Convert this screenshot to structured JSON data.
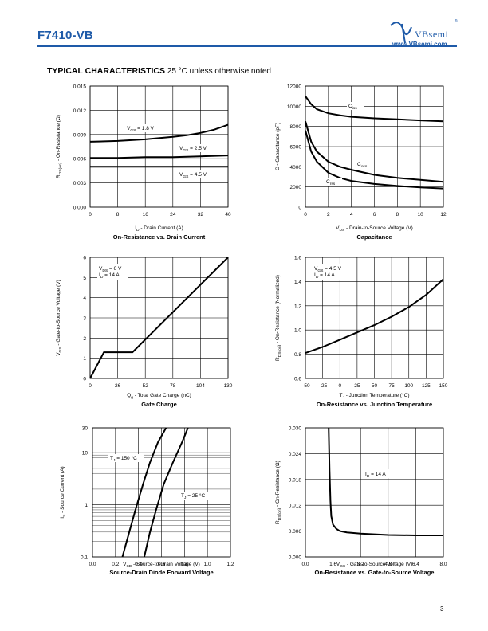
{
  "header": {
    "part_number": "F7410-VB",
    "brand": "VBsemi",
    "url": "www.VBsemi.com",
    "brand_color": "#1e5aa8"
  },
  "section": {
    "title": "TYPICAL CHARACTERISTICS",
    "note": "25 °C unless otherwise noted"
  },
  "page_number": "3",
  "chart_data": [
    {
      "type": "line",
      "title": "On-Resistance vs. Drain Current",
      "xlabel": "I_D - Drain Current (A)",
      "ylabel": "R_DS(on) - On-Resistance (Ω)",
      "xlim": [
        0,
        40
      ],
      "ylim": [
        0,
        0.015
      ],
      "xticks": [
        "0",
        "8",
        "16",
        "24",
        "32",
        "40"
      ],
      "yticks": [
        "0.000",
        "0.003",
        "0.006",
        "0.009",
        "0.012",
        "0.015"
      ],
      "grid": true,
      "series": [
        {
          "name": "V_GS = 1.8 V",
          "x": [
            0,
            8,
            16,
            24,
            28,
            32,
            36,
            40
          ],
          "y": [
            0.0081,
            0.0082,
            0.0084,
            0.0087,
            0.0089,
            0.0092,
            0.0096,
            0.0102
          ]
        },
        {
          "name": "V_GS = 2.5 V",
          "x": [
            0,
            8,
            16,
            24,
            32,
            40
          ],
          "y": [
            0.0061,
            0.0061,
            0.0062,
            0.0062,
            0.0063,
            0.0064
          ]
        },
        {
          "name": "V_GS = 4.5 V",
          "x": [
            0,
            8,
            16,
            24,
            32,
            40
          ],
          "y": [
            0.005,
            0.005,
            0.005,
            0.005,
            0.005,
            0.005
          ]
        }
      ]
    },
    {
      "type": "line",
      "title": "Capacitance",
      "xlabel": "V_DS - Drain-to-Source Voltage (V)",
      "ylabel": "C - Capacitance (pF)",
      "xlim": [
        0,
        12
      ],
      "ylim": [
        0,
        12000
      ],
      "xticks": [
        "0",
        "2",
        "4",
        "6",
        "8",
        "10",
        "12"
      ],
      "yticks": [
        "0",
        "2000",
        "4000",
        "6000",
        "8000",
        "10000",
        "12000"
      ],
      "grid": true,
      "series": [
        {
          "name": "C_iss",
          "x": [
            0,
            0.5,
            1,
            2,
            3,
            4,
            6,
            8,
            10,
            12
          ],
          "y": [
            11000,
            10200,
            9700,
            9300,
            9100,
            8950,
            8800,
            8700,
            8600,
            8500
          ]
        },
        {
          "name": "C_oss",
          "x": [
            0,
            0.5,
            1,
            2,
            3,
            4,
            6,
            8,
            10,
            12
          ],
          "y": [
            8500,
            6500,
            5500,
            4500,
            4000,
            3700,
            3200,
            2900,
            2700,
            2500
          ]
        },
        {
          "name": "C_rss",
          "x": [
            0,
            0.5,
            1,
            2,
            3,
            4,
            6,
            8,
            10,
            12
          ],
          "y": [
            7600,
            5500,
            4500,
            3400,
            2900,
            2600,
            2300,
            2100,
            1950,
            1850
          ]
        }
      ]
    },
    {
      "type": "line",
      "title": "Gate Charge",
      "xlabel": "Q_g - Total Gate Charge (nC)",
      "ylabel": "V_GS - Gate-to-Source Voltage (V)",
      "xlim": [
        0,
        130
      ],
      "ylim": [
        0,
        6
      ],
      "xticks": [
        "0",
        "26",
        "52",
        "78",
        "104",
        "130"
      ],
      "yticks": [
        "0",
        "1",
        "2",
        "3",
        "4",
        "5",
        "6"
      ],
      "grid": true,
      "annotation": [
        "V_DS = 6 V",
        "I_D = 14 A"
      ],
      "series": [
        {
          "name": "",
          "x": [
            0,
            13,
            40,
            130
          ],
          "y": [
            0,
            1.3,
            1.3,
            6.0
          ]
        }
      ]
    },
    {
      "type": "line",
      "title": "On-Resistance vs. Junction Temperature",
      "xlabel": "T_J - Junction Temperature (°C)",
      "ylabel": "R_DS(on) - On-Resistance (Normalized)",
      "xlim": [
        -50,
        150
      ],
      "ylim": [
        0.6,
        1.6
      ],
      "xticks": [
        "- 50",
        "- 25",
        "0",
        "25",
        "50",
        "75",
        "100",
        "125",
        "150"
      ],
      "yticks": [
        "0.6",
        "0.8",
        "1.0",
        "1.2",
        "1.4",
        "1.6"
      ],
      "grid": true,
      "annotation": [
        "V_GS = 4.5 V",
        "I_D = 14 A"
      ],
      "series": [
        {
          "name": "",
          "x": [
            -50,
            -25,
            0,
            25,
            50,
            75,
            100,
            125,
            150
          ],
          "y": [
            0.81,
            0.86,
            0.92,
            0.98,
            1.04,
            1.11,
            1.19,
            1.29,
            1.42
          ]
        }
      ]
    },
    {
      "type": "line",
      "title": "Source-Drain Diode Forward Voltage",
      "xlabel": "V_SD - Source-to-Drain Voltage (V)",
      "ylabel": "I_S - Source Current (A)",
      "xlim": [
        0,
        1.2
      ],
      "ylim": [
        0.1,
        30
      ],
      "yscale": "log",
      "xticks": [
        "0.0",
        "0.2",
        "0.4",
        "0.6",
        "0.8",
        "1.0",
        "1.2"
      ],
      "yticks": [
        "0.1",
        "1",
        "10",
        "30"
      ],
      "grid": true,
      "series": [
        {
          "name": "T_J = 150 °C",
          "x": [
            0.26,
            0.32,
            0.38,
            0.44,
            0.5,
            0.57,
            0.64
          ],
          "y": [
            0.1,
            0.3,
            0.9,
            2.5,
            6.5,
            16,
            30
          ]
        },
        {
          "name": "T_J = 25 °C",
          "x": [
            0.45,
            0.5,
            0.56,
            0.62,
            0.7,
            0.78,
            0.83
          ],
          "y": [
            0.1,
            0.3,
            0.9,
            2.5,
            6.5,
            16,
            30
          ]
        }
      ]
    },
    {
      "type": "line",
      "title": "On-Resistance vs. Gate-to-Source Voltage",
      "xlabel": "V_GS - Gate-to-Source Voltage (V)",
      "ylabel": "R_DS(on) - On-Resistance (Ω)",
      "xlim": [
        0,
        8.0
      ],
      "ylim": [
        0,
        0.03
      ],
      "xticks": [
        "0.0",
        "1.6",
        "3.2",
        "4.8",
        "6.4",
        "8.0"
      ],
      "yticks": [
        "0.000",
        "0.006",
        "0.012",
        "0.018",
        "0.024",
        "0.030"
      ],
      "grid": true,
      "annotation": [
        "I_D = 14 A"
      ],
      "series": [
        {
          "name": "",
          "x": [
            1.35,
            1.4,
            1.45,
            1.5,
            1.6,
            1.8,
            2.0,
            2.4,
            3.2,
            4.8,
            6.4,
            8.0
          ],
          "y": [
            0.03,
            0.02,
            0.013,
            0.0095,
            0.0075,
            0.0065,
            0.006,
            0.0057,
            0.0054,
            0.0051,
            0.005,
            0.005
          ]
        }
      ]
    }
  ]
}
